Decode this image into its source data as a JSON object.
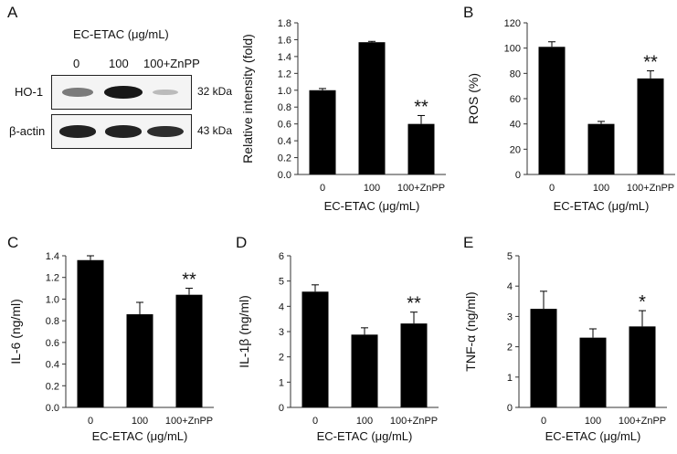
{
  "panels": {
    "a": {
      "letter": "A"
    },
    "b": {
      "letter": "B"
    },
    "c": {
      "letter": "C"
    },
    "d": {
      "letter": "D"
    },
    "e": {
      "letter": "E"
    }
  },
  "western_blot": {
    "title": "EC-ETAC (μg/mL)",
    "lanes": [
      "0",
      "100",
      "100+ZnPP"
    ],
    "rows": [
      {
        "protein": "HO-1",
        "kda": "32 kDa",
        "band_intensity": [
          0.45,
          0.95,
          0.12
        ]
      },
      {
        "protein": "β-actin",
        "kda": "43 kDa",
        "band_intensity": [
          0.9,
          0.9,
          0.85
        ]
      }
    ]
  },
  "chart_data": [
    {
      "id": "a",
      "type": "bar",
      "categories": [
        "0",
        "100",
        "100+ZnPP"
      ],
      "values": [
        1.0,
        1.57,
        0.6
      ],
      "errors": [
        0.02,
        0.01,
        0.1
      ],
      "annotations": [
        "",
        "",
        "**"
      ],
      "xlabel": "EC-ETAC (μg/mL)",
      "ylabel": "Relative intensity (fold)",
      "ylim": [
        0,
        1.8
      ],
      "yticks": [
        "0.0",
        "0.2",
        "0.4",
        "0.6",
        "0.8",
        "1.0",
        "1.2",
        "1.4",
        "1.6",
        "1.8"
      ]
    },
    {
      "id": "b",
      "type": "bar",
      "categories": [
        "0",
        "100",
        "100+ZnPP"
      ],
      "values": [
        101,
        40,
        76
      ],
      "errors": [
        4,
        2,
        6
      ],
      "annotations": [
        "",
        "",
        "**"
      ],
      "xlabel": "EC-ETAC (μg/mL)",
      "ylabel": "ROS (%)",
      "ylim": [
        0,
        120
      ],
      "yticks": [
        "0",
        "20",
        "40",
        "60",
        "80",
        "100",
        "120"
      ]
    },
    {
      "id": "c",
      "type": "bar",
      "categories": [
        "0",
        "100",
        "100+ZnPP"
      ],
      "values": [
        1.36,
        0.86,
        1.04
      ],
      "errors": [
        0.04,
        0.11,
        0.06
      ],
      "annotations": [
        "",
        "",
        "**"
      ],
      "xlabel": "EC-ETAC (μg/mL)",
      "ylabel": "IL-6 (ng/ml)",
      "ylim": [
        0,
        1.4
      ],
      "yticks": [
        "0.0",
        "0.2",
        "0.4",
        "0.6",
        "0.8",
        "1.0",
        "1.2",
        "1.4"
      ]
    },
    {
      "id": "d",
      "type": "bar",
      "categories": [
        "0",
        "100",
        "100+ZnPP"
      ],
      "values": [
        4.58,
        2.88,
        3.32
      ],
      "errors": [
        0.27,
        0.27,
        0.45
      ],
      "annotations": [
        "",
        "",
        "**"
      ],
      "xlabel": "EC-ETAC (μg/mL)",
      "ylabel": "IL-1β (ng/ml)",
      "ylim": [
        0,
        6
      ],
      "yticks": [
        "0",
        "1",
        "2",
        "3",
        "4",
        "5",
        "6"
      ]
    },
    {
      "id": "e",
      "type": "bar",
      "categories": [
        "0",
        "100",
        "100+ZnPP"
      ],
      "values": [
        3.25,
        2.3,
        2.67
      ],
      "errors": [
        0.58,
        0.29,
        0.52
      ],
      "annotations": [
        "",
        "",
        "*"
      ],
      "xlabel": "EC-ETAC (μg/mL)",
      "ylabel": "TNF-α (ng/ml)",
      "ylim": [
        0,
        5
      ],
      "yticks": [
        "0",
        "1",
        "2",
        "3",
        "4",
        "5"
      ]
    }
  ]
}
